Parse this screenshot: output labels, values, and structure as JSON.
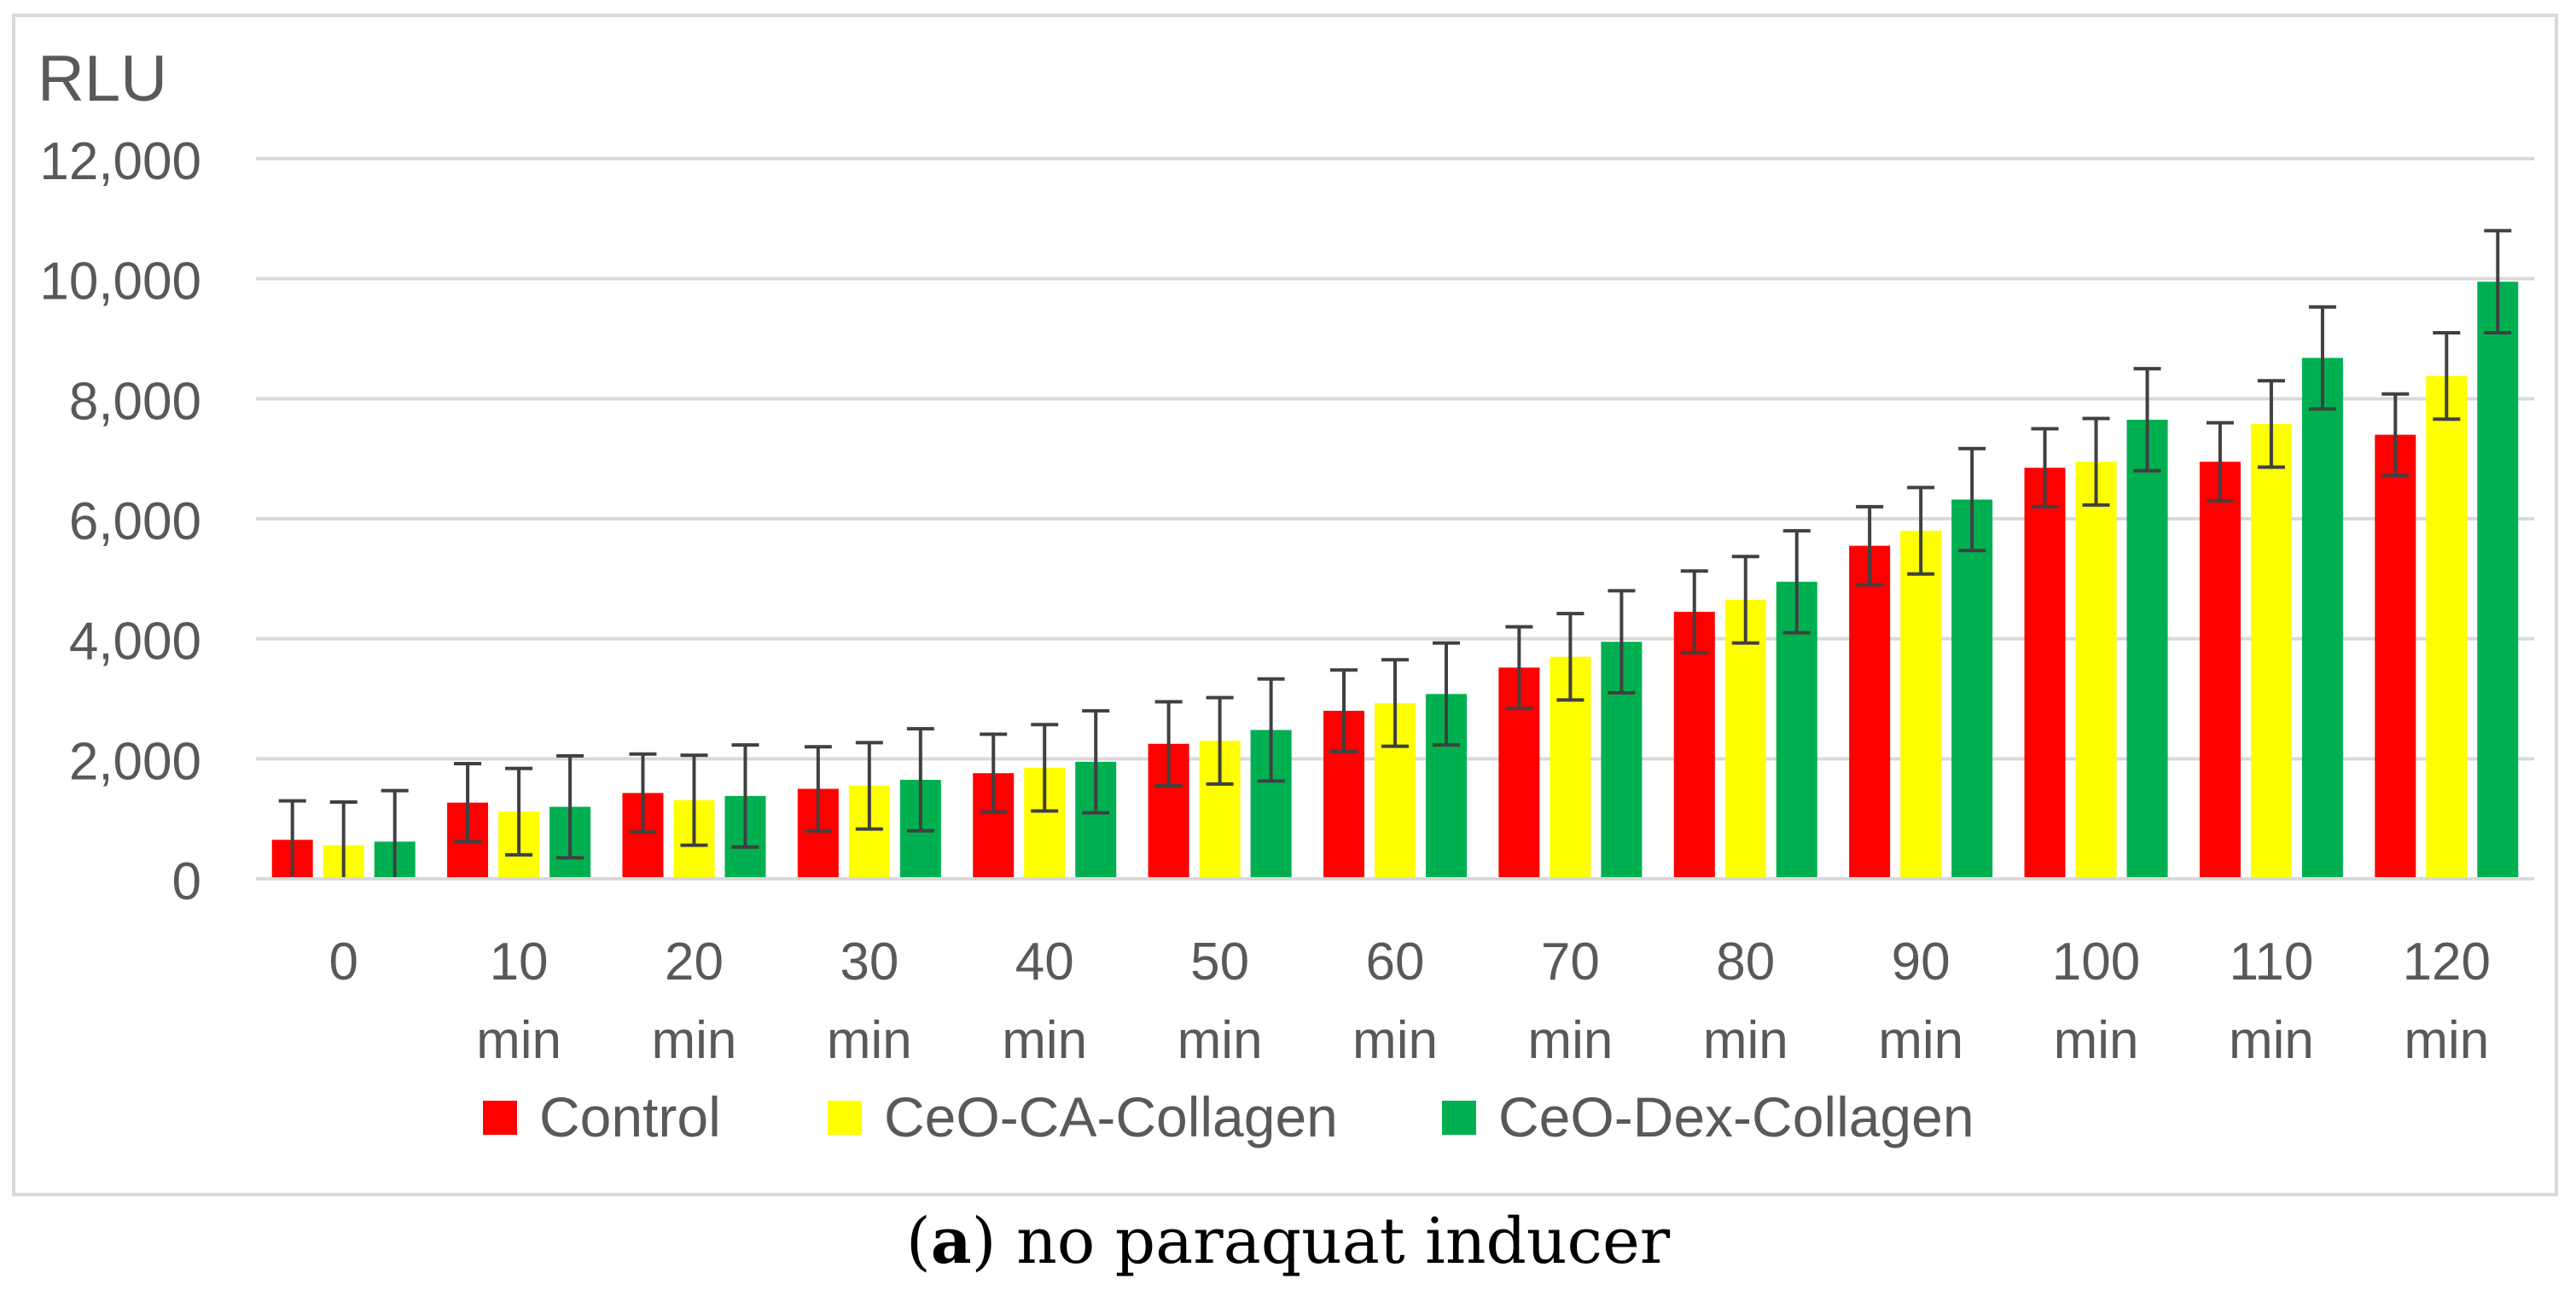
{
  "chart_data": {
    "type": "bar",
    "ylabel": "RLU",
    "ylim": [
      0,
      12000
    ],
    "yticks": [
      "0",
      "2,000",
      "4,000",
      "6,000",
      "8,000",
      "10,000",
      "12,000"
    ],
    "ytick_values": [
      0,
      2000,
      4000,
      6000,
      8000,
      10000,
      12000
    ],
    "categories": [
      [
        "0"
      ],
      [
        "10",
        "min"
      ],
      [
        "20",
        "min"
      ],
      [
        "30",
        "min"
      ],
      [
        "40",
        "min"
      ],
      [
        "50",
        "min"
      ],
      [
        "60",
        "min"
      ],
      [
        "70",
        "min"
      ],
      [
        "80",
        "min"
      ],
      [
        "90",
        "min"
      ],
      [
        "100",
        "min"
      ],
      [
        "110",
        "min"
      ],
      [
        "120",
        "min"
      ]
    ],
    "series": [
      {
        "name": "Control",
        "color": "#ff0000",
        "values": [
          650,
          1270,
          1430,
          1500,
          1760,
          2250,
          2800,
          3520,
          4450,
          5550,
          6850,
          6950,
          7400
        ],
        "errors": [
          650,
          650,
          650,
          700,
          650,
          700,
          680,
          680,
          680,
          650,
          650,
          650,
          680
        ]
      },
      {
        "name": "CeO-CA-Collagen",
        "color": "#ffff00",
        "values": [
          560,
          1120,
          1310,
          1550,
          1850,
          2300,
          2930,
          3700,
          4650,
          5800,
          6950,
          7580,
          8380
        ],
        "errors": [
          720,
          720,
          750,
          720,
          720,
          720,
          720,
          720,
          720,
          720,
          720,
          720,
          720
        ]
      },
      {
        "name": "CeO-Dex-Collagen",
        "color": "#00b050",
        "values": [
          620,
          1200,
          1380,
          1650,
          1950,
          2480,
          3080,
          3950,
          4950,
          6320,
          7650,
          8680,
          9950
        ],
        "errors": [
          850,
          850,
          850,
          850,
          850,
          850,
          850,
          850,
          850,
          850,
          850,
          850,
          850
        ]
      }
    ],
    "grid": true,
    "legend": "bottom",
    "error_bar_color": "#404040",
    "axis_text_color": "#595959",
    "gridline_color": "#d9d9d9"
  },
  "caption": {
    "label": "a",
    "text": ") no paraquat inducer",
    "open": "("
  }
}
